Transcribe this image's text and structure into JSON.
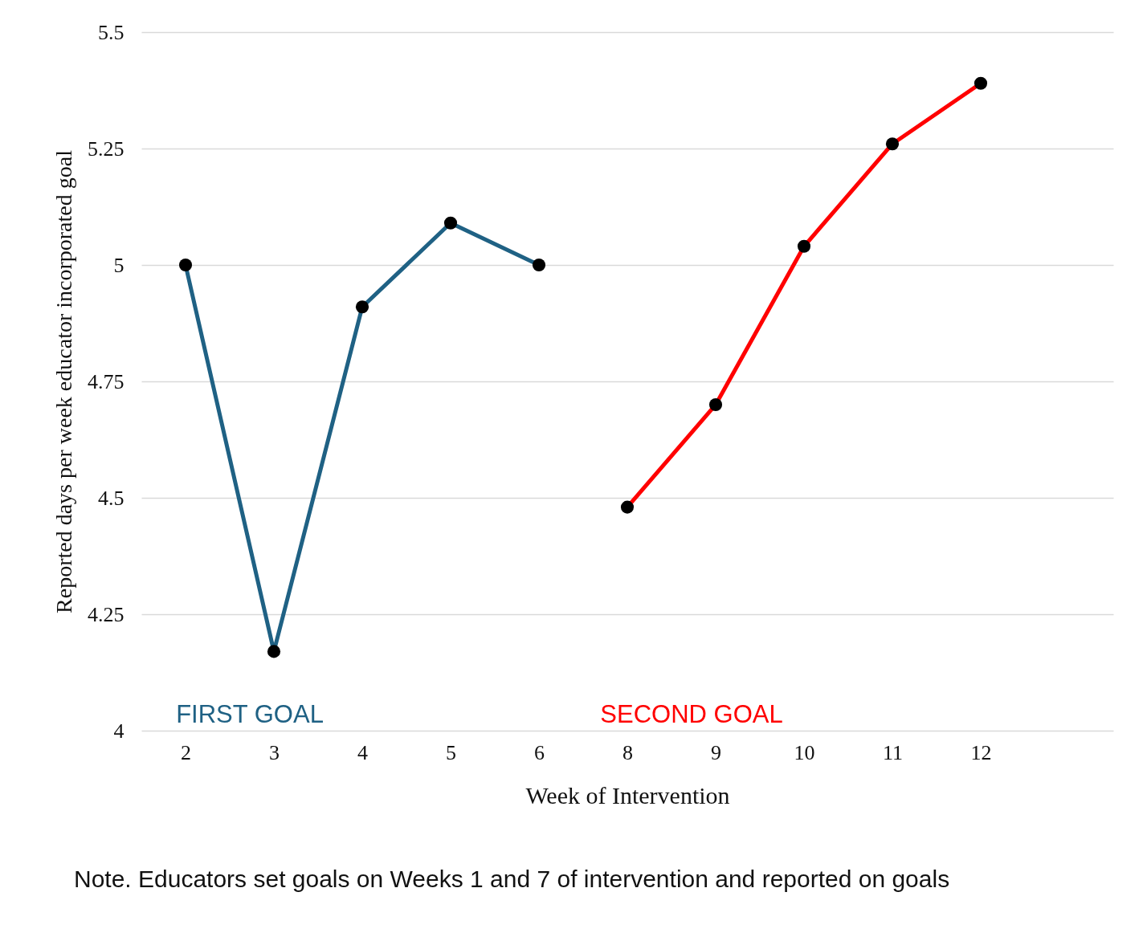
{
  "chart_data": {
    "type": "line",
    "xlabel": "Week of Intervention",
    "ylabel": "Reported days per week educator incorporated goal",
    "categories": [
      "2",
      "3",
      "4",
      "5",
      "6",
      "8",
      "9",
      "10",
      "11",
      "12",
      null
    ],
    "series": [
      {
        "name": "FIRST GOAL",
        "color": "#1f6184",
        "values": [
          5.0,
          4.17,
          4.91,
          5.09,
          5.0,
          null,
          null,
          null,
          null,
          null,
          null
        ]
      },
      {
        "name": "SECOND GOAL",
        "color": "#ff0000",
        "values": [
          null,
          null,
          null,
          null,
          null,
          4.48,
          4.7,
          5.04,
          5.26,
          5.39,
          null
        ]
      }
    ],
    "ylim": [
      4,
      5.5
    ],
    "yticks": [
      4,
      4.25,
      4.5,
      4.75,
      5,
      5.25,
      5.5
    ],
    "grid": "y",
    "marker": "circle",
    "annotations": [
      "Note. Educators set goals on Weeks 1 and 7 of intervention and reported on goals"
    ]
  }
}
